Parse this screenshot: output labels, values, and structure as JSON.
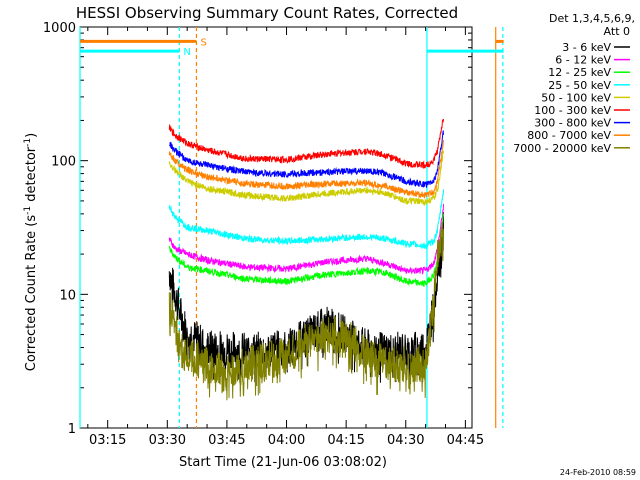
{
  "chart_data": {
    "type": "line",
    "title": "HESSI Observing Summary Count Rates, Corrected",
    "xlabel": "Start Time (21-Jun-06 03:08:02)",
    "ylabel_main": "Corrected Count Rate (s",
    "ylabel_sup1": "-1",
    "ylabel_mid": " detector",
    "ylabel_sup2": "-1",
    "ylabel_end": ")",
    "y_scale": "log",
    "ylim": [
      1,
      1000
    ],
    "xlim": [
      "03:08:02",
      "04:46:40"
    ],
    "y_ticks": [
      {
        "value": 1,
        "label": "1"
      },
      {
        "value": 10,
        "label": "10"
      },
      {
        "value": 100,
        "label": "100"
      },
      {
        "value": 1000,
        "label": "1000"
      }
    ],
    "x_ticks": [
      {
        "minutes": 15,
        "label": "03:15"
      },
      {
        "minutes": 30,
        "label": "03:30"
      },
      {
        "minutes": 45,
        "label": "03:45"
      },
      {
        "minutes": 60,
        "label": "04:00"
      },
      {
        "minutes": 75,
        "label": "04:15"
      },
      {
        "minutes": 90,
        "label": "04:30"
      },
      {
        "minutes": 105,
        "label": "04:45"
      }
    ],
    "legend_header": [
      "Det 1,3,4,5,6,9,",
      "Att 0"
    ],
    "legend_placement": "right",
    "series": [
      {
        "name": "3 - 6 keV",
        "color": "#000000",
        "x": [
          30.5,
          31,
          32,
          33,
          34,
          36,
          40,
          50,
          60,
          70,
          75,
          80,
          85,
          90,
          95,
          97,
          98,
          99.5
        ],
        "values": [
          15,
          13,
          10,
          8,
          6,
          5,
          4,
          3.8,
          4,
          6,
          5,
          4,
          3.8,
          3.8,
          4,
          8,
          15,
          30
        ]
      },
      {
        "name": "6 - 12 keV",
        "color": "#ff00ff",
        "x": [
          30.5,
          32,
          35,
          40,
          50,
          60,
          70,
          80,
          85,
          90,
          95,
          97,
          98,
          99.5
        ],
        "values": [
          26,
          22,
          20,
          18,
          16,
          15.5,
          17.5,
          18.5,
          17,
          15,
          15,
          17,
          22,
          45
        ]
      },
      {
        "name": "12 - 25 keV",
        "color": "#00ff00",
        "x": [
          30.5,
          32,
          35,
          40,
          50,
          60,
          70,
          80,
          85,
          90,
          95,
          97,
          98,
          99.5
        ],
        "values": [
          22,
          19,
          16,
          15,
          13,
          12.5,
          14,
          15,
          14.5,
          12.5,
          12,
          14,
          18,
          40
        ]
      },
      {
        "name": "25 - 50 keV",
        "color": "#00ffff",
        "x": [
          30.5,
          32,
          35,
          40,
          50,
          60,
          70,
          80,
          85,
          90,
          95,
          97,
          98,
          99.5
        ],
        "values": [
          45,
          38,
          32,
          30,
          26,
          25,
          26,
          27,
          26,
          24,
          23,
          25,
          30,
          60
        ]
      },
      {
        "name": "50 - 100 keV",
        "color": "#cccc00",
        "x": [
          30.5,
          32,
          35,
          40,
          50,
          60,
          70,
          80,
          85,
          90,
          95,
          97,
          98,
          99.5
        ],
        "values": [
          95,
          85,
          70,
          62,
          55,
          52,
          57,
          60,
          57,
          50,
          49,
          52,
          60,
          120
        ]
      },
      {
        "name": "100 - 300 keV",
        "color": "#ff0000",
        "x": [
          30.5,
          32,
          35,
          40,
          50,
          60,
          70,
          80,
          85,
          90,
          95,
          97,
          98,
          99.5
        ],
        "values": [
          175,
          155,
          135,
          120,
          103,
          102,
          112,
          118,
          110,
          95,
          92,
          100,
          120,
          210
        ]
      },
      {
        "name": "300 - 800 keV",
        "color": "#0000ff",
        "x": [
          30.5,
          32,
          35,
          40,
          50,
          60,
          70,
          80,
          85,
          90,
          95,
          97,
          98,
          99.5
        ],
        "values": [
          135,
          118,
          100,
          92,
          82,
          79,
          82,
          84,
          80,
          70,
          66,
          70,
          85,
          165
        ]
      },
      {
        "name": "800 - 7000 keV",
        "color": "#ff8000",
        "x": [
          30.5,
          32,
          35,
          40,
          50,
          60,
          70,
          80,
          85,
          90,
          95,
          97,
          98,
          99.5
        ],
        "values": [
          115,
          100,
          85,
          76,
          67,
          64,
          67,
          68,
          64,
          58,
          55,
          58,
          70,
          140
        ]
      },
      {
        "name": "7000 - 20000 keV",
        "color": "#808000",
        "x": [
          30.5,
          32,
          33,
          35,
          40,
          45,
          50,
          55,
          60,
          65,
          70,
          75,
          80,
          85,
          90,
          95,
          97,
          98,
          99.5
        ],
        "values": [
          8,
          6,
          4,
          3.5,
          3,
          2.5,
          3,
          3.2,
          3.5,
          4.5,
          5,
          5,
          3.5,
          3,
          3,
          3,
          8,
          20,
          30
        ]
      }
    ],
    "flag_bars": [
      {
        "label": "S",
        "color": "#ff8000",
        "segments": [
          [
            0,
            29.3
          ],
          [
            104.5,
            106.6
          ]
        ],
        "y_value": 780
      },
      {
        "label": "N",
        "color": "#00ffff",
        "segments": [
          [
            0,
            25.0
          ],
          [
            87.3,
            106.6
          ]
        ],
        "y_value": 660
      }
    ],
    "vertical_markers": [
      {
        "x": 0,
        "color": "#00ffff",
        "style": "solid"
      },
      {
        "x": 25.0,
        "color": "#00ffff",
        "style": "dashed"
      },
      {
        "x": 29.3,
        "color": "#ff8000",
        "style": "dashed"
      },
      {
        "x": 87.3,
        "color": "#00ffff",
        "style": "solid"
      },
      {
        "x": 104.6,
        "color": "#ff8000",
        "style": "solid"
      },
      {
        "x": 106.4,
        "color": "#00ffff",
        "style": "dashed"
      }
    ],
    "grid": false
  },
  "footer": {
    "date_stamp": "24-Feb-2010 08:59"
  }
}
